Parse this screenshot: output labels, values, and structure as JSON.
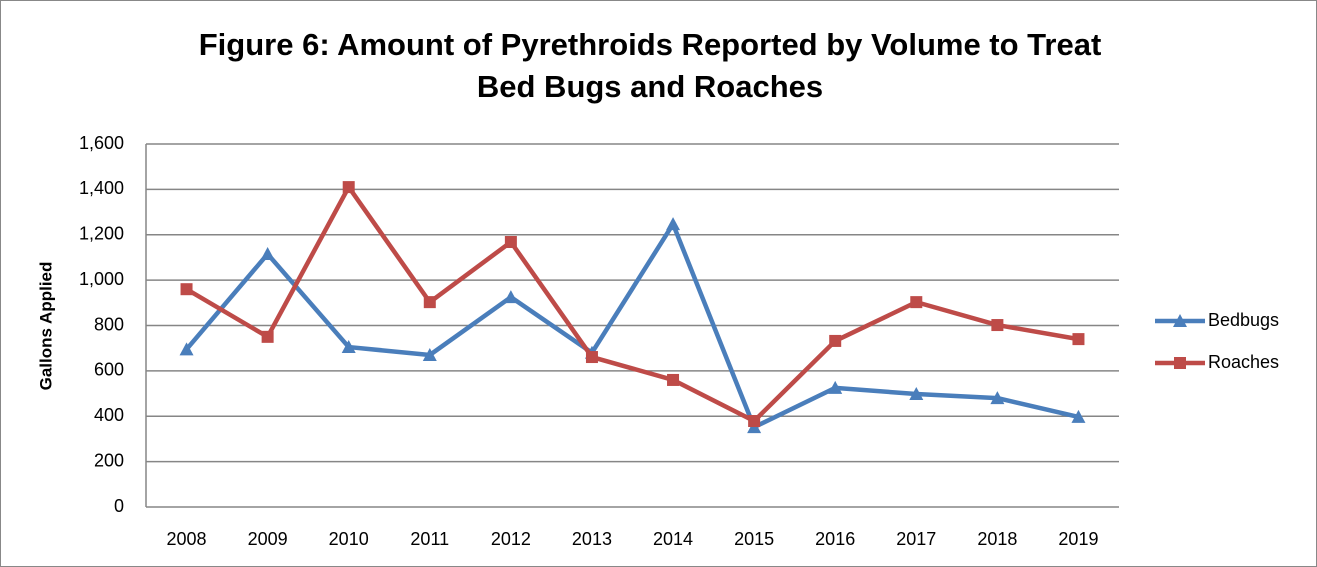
{
  "chart_data": {
    "type": "line",
    "title": [
      "Figure 6: Amount of Pyrethroids Reported by Volume to Treat",
      "Bed Bugs and Roaches"
    ],
    "y_label": "Gallons Applied",
    "categories": [
      "2008",
      "2009",
      "2010",
      "2011",
      "2012",
      "2013",
      "2014",
      "2015",
      "2016",
      "2017",
      "2018",
      "2019"
    ],
    "series": [
      {
        "name": "Bedbugs",
        "color": "#4a7ebb",
        "marker": "triangle",
        "values": [
          695,
          1115,
          705,
          670,
          925,
          680,
          1247,
          352,
          525,
          498,
          480,
          397
        ]
      },
      {
        "name": "Roaches",
        "color": "#be4b48",
        "marker": "square",
        "values": [
          960,
          750,
          1410,
          903,
          1168,
          661,
          560,
          379,
          732,
          903,
          802,
          740
        ]
      }
    ],
    "ylim": [
      0,
      1600
    ],
    "yticks": [
      0,
      200,
      400,
      600,
      800,
      {
        "value": 1000,
        "label": "1,000"
      },
      {
        "value": 1200,
        "label": "1,200"
      },
      {
        "value": 1400,
        "label": "1,400"
      },
      {
        "value": 1600,
        "label": "1,600"
      }
    ],
    "grid": true,
    "legend": "right"
  }
}
